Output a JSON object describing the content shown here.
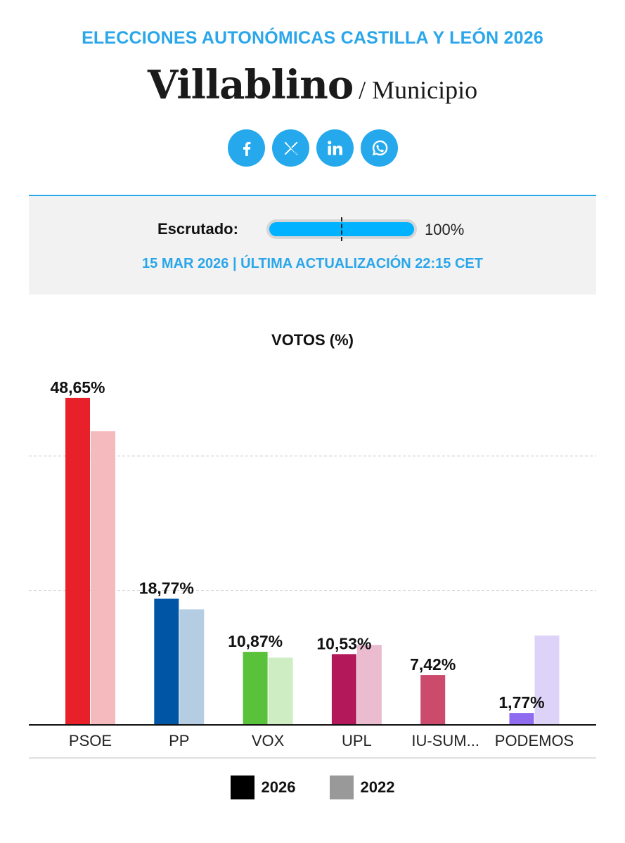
{
  "header": {
    "kicker": "ELECCIONES AUTONÓMICAS CASTILLA Y LEÓN 2026",
    "title": "Villablino",
    "subtitle": "/ Municipio"
  },
  "share": [
    {
      "icon": "facebook-icon"
    },
    {
      "icon": "x-icon"
    },
    {
      "icon": "linkedin-icon"
    },
    {
      "icon": "whatsapp-icon"
    }
  ],
  "scrutiny": {
    "label": "Escrutado:",
    "percent_label": "100%",
    "fraction": 1.0,
    "updated": "15 MAR 2026 | ÚLTIMA ACTUALIZACIÓN 22:15 CET"
  },
  "chart_data": {
    "type": "bar",
    "title": "VOTOS (%)",
    "categories": [
      "PSOE",
      "PP",
      "VOX",
      "UPL",
      "IU-SUM...",
      "PODEMOS"
    ],
    "series": [
      {
        "name": "2026",
        "values": [
          48.65,
          18.77,
          10.87,
          10.53,
          7.42,
          1.77
        ],
        "colors": [
          "#e8202a",
          "#0055a5",
          "#5ac13a",
          "#b3195a",
          "#cc4a6c",
          "#8f6bef"
        ]
      },
      {
        "name": "2022",
        "values": [
          43.7,
          17.2,
          10.0,
          11.9,
          null,
          13.3
        ],
        "colors": [
          "#f4babd",
          "#b4cde3",
          "#cfedc3",
          "#ebbbd0",
          "#f0c3cf",
          "#ddd2f8"
        ]
      }
    ],
    "data_labels": [
      "48,65%",
      "18,77%",
      "10,87%",
      "10,53%",
      "7,42%",
      "1,77%"
    ],
    "ylim": [
      0,
      50
    ],
    "gridlines": [
      20,
      40
    ],
    "legend": {
      "placement": "bottom",
      "items": [
        {
          "label": "2026",
          "color": "#000000"
        },
        {
          "label": "2022",
          "color": "#999999"
        }
      ]
    }
  }
}
